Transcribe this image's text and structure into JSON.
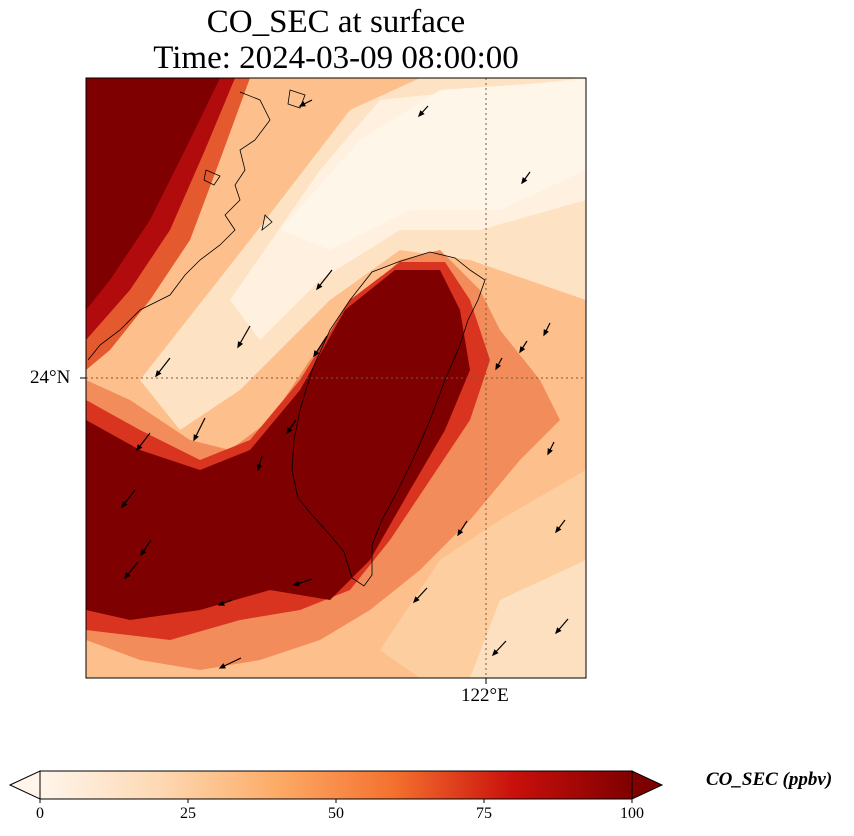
{
  "title_line1": "CO_SEC at surface",
  "title_line2": "Time: 2024-03-09 08:00:00",
  "axes": {
    "lat_tick": "24°N",
    "lon_tick": "122°E"
  },
  "colorbar": {
    "label": "CO_SEC (ppbv)",
    "min": 0,
    "max": 100,
    "extend": "both",
    "ticks": [
      "0",
      "25",
      "50",
      "75",
      "100"
    ],
    "colormap_stops": [
      "#fff5eb",
      "#fdd9b4",
      "#fdab67",
      "#f4702d",
      "#c9100c",
      "#7f0000"
    ]
  },
  "map": {
    "region": "Taiwan and Taiwan Strait",
    "gridlines": "dotted",
    "vector_arrows": true
  }
}
